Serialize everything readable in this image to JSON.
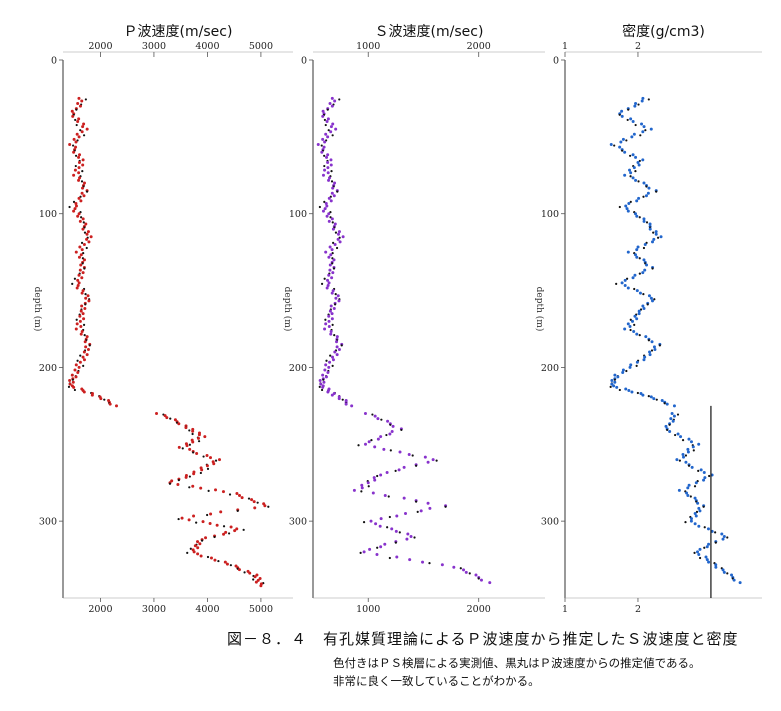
{
  "caption": {
    "title": "図－８．４　有孔媒質理論によるＰ波速度から推定したＳ波速度と密度",
    "note1": "色付きはＰＳ検層による実測値、黒丸はＰ波速度からの推定値である。",
    "note2": "非常に良く一致していることがわかる。"
  },
  "chart_data": [
    {
      "type": "scatter",
      "title": "Ｐ波速度(m/sec)",
      "ylabel": "depth (m)",
      "xlim": [
        1300,
        5600
      ],
      "ylim": [
        0,
        350
      ],
      "x_ticks": [
        2000,
        3000,
        4000,
        5000
      ],
      "x_tick_labels_top": [
        "2000",
        "3000",
        "4000",
        "5000"
      ],
      "x_tick_labels_bottom": [
        "2000",
        "3000",
        "4000",
        "5000"
      ],
      "y_ticks": [
        0,
        100,
        200,
        300
      ],
      "y_tick_labels": [
        "0",
        "100",
        "200",
        "300"
      ],
      "series": [
        {
          "color": "#cc2020",
          "depth": [
            25,
            35,
            45,
            55,
            65,
            75,
            85,
            95,
            105,
            115,
            125,
            135,
            145,
            155,
            165,
            175,
            185,
            195,
            205,
            212,
            218,
            225
          ],
          "values": [
            1650,
            1500,
            1700,
            1450,
            1650,
            1550,
            1750,
            1500,
            1650,
            1800,
            1600,
            1700,
            1550,
            1750,
            1650,
            1600,
            1800,
            1650,
            1500,
            1450,
            1900,
            2300
          ]
        },
        {
          "color": "#cc2020",
          "depth": [
            230,
            238,
            245,
            252,
            260,
            268,
            275,
            282,
            290,
            298,
            305,
            312,
            320,
            328,
            335,
            342
          ],
          "values": [
            3100,
            3600,
            3900,
            3500,
            4200,
            3800,
            3300,
            4500,
            5100,
            3500,
            4600,
            3900,
            3700,
            4400,
            4900,
            5000
          ]
        }
      ]
    },
    {
      "type": "scatter",
      "title": "Ｓ波速度(m/sec)",
      "ylabel": "depth (m)",
      "xlim": [
        500,
        2600
      ],
      "ylim": [
        0,
        350
      ],
      "x_ticks": [
        1000,
        2000
      ],
      "x_tick_labels_top": [
        "1000",
        "2000"
      ],
      "x_tick_labels_bottom": [
        "1000",
        "2000"
      ],
      "y_ticks": [
        0,
        100,
        200,
        300
      ],
      "y_tick_labels": [
        "0",
        "100",
        "200",
        "300"
      ],
      "series": [
        {
          "color": "#8833cc",
          "depth": [
            25,
            35,
            45,
            55,
            65,
            75,
            85,
            95,
            105,
            115,
            125,
            135,
            145,
            155,
            165,
            175,
            185,
            195,
            205,
            212,
            218,
            225
          ],
          "values": [
            700,
            600,
            680,
            560,
            650,
            620,
            720,
            600,
            660,
            760,
            640,
            690,
            620,
            720,
            660,
            630,
            760,
            660,
            600,
            580,
            700,
            850
          ]
        },
        {
          "color": "#8833cc",
          "depth": [
            230,
            240,
            250,
            260,
            270,
            280,
            290,
            300,
            310,
            320,
            330,
            340
          ],
          "values": [
            1000,
            1300,
            950,
            1600,
            1100,
            900,
            1700,
            1000,
            1400,
            950,
            1800,
            2100
          ]
        }
      ]
    },
    {
      "type": "scatter",
      "title": "密度(g/cm3)",
      "ylabel": "depth (m)",
      "xlim": [
        1,
        3.7
      ],
      "ylim": [
        0,
        350
      ],
      "x_ticks": [
        1,
        2
      ],
      "x_tick_labels_top": [
        "1",
        "2"
      ],
      "x_tick_labels_bottom": [
        "1",
        "2"
      ],
      "y_ticks": [
        0,
        100,
        200,
        300
      ],
      "y_tick_labels": [
        "0",
        "100",
        "200",
        "300"
      ],
      "series": [
        {
          "color": "#2266cc",
          "depth": [
            25,
            35,
            45,
            55,
            65,
            75,
            85,
            95,
            105,
            115,
            125,
            135,
            145,
            155,
            165,
            175,
            185,
            195,
            205,
            212,
            218,
            225
          ],
          "values": [
            2.1,
            1.75,
            2.15,
            1.65,
            2.05,
            1.85,
            2.25,
            1.8,
            2.1,
            2.3,
            1.9,
            2.2,
            1.75,
            2.2,
            2.0,
            1.85,
            2.3,
            2.05,
            1.7,
            1.65,
            2.1,
            2.5
          ]
        },
        {
          "color": "#2266cc",
          "depth": [
            230,
            240,
            250,
            260,
            270,
            280,
            290,
            300,
            310,
            320,
            330,
            340
          ],
          "values": [
            2.5,
            2.4,
            2.8,
            2.55,
            3.0,
            2.6,
            2.9,
            2.7,
            3.2,
            2.8,
            3.1,
            3.4
          ]
        }
      ]
    }
  ]
}
